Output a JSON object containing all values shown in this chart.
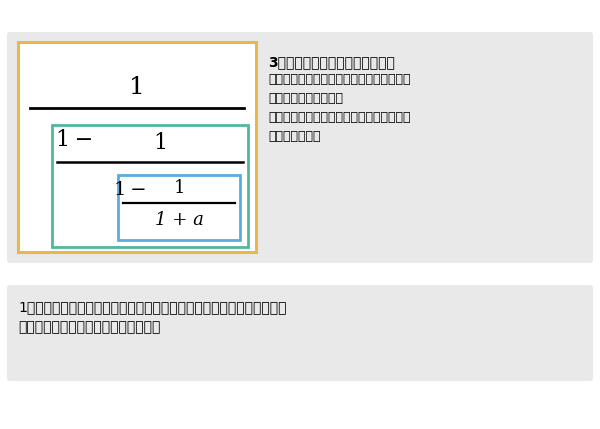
{
  "bg_color": "#ffffff",
  "top_panel_bg": "#e9e9e9",
  "bottom_panel_bg": "#e9e9e9",
  "yellow_box_color": "#e8b84b",
  "green_box_color": "#50b89a",
  "blue_box_color": "#5aace0",
  "title_text": "3つの分数式からできた繁分数式",
  "desc_line1": "割り算に戻すときは、外側から順に割り算",
  "desc_line2": "に戻していくと良い。",
  "desc_line3": "また、計算するときは、一番内側の分数式",
  "desc_line4": "から処理する。",
  "bottom_line1": "1つずつ順に割り算に戻していけば間違うことはない。対応する分母と",
  "bottom_line2": "分子を使って割り算に戻していこう。",
  "fig_width": 6.0,
  "fig_height": 4.29
}
